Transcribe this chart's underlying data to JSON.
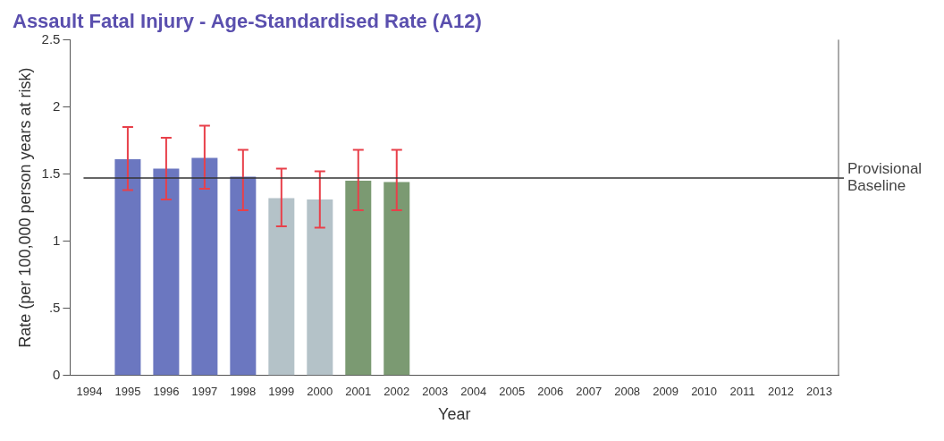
{
  "chart_data": {
    "type": "bar",
    "title": "Assault Fatal Injury - Age-Standardised Rate (A12)",
    "xlabel": "Year",
    "ylabel": "Rate (per 100,000 person years at risk)",
    "categories": [
      "1994",
      "1995",
      "1996",
      "1997",
      "1998",
      "1999",
      "2000",
      "2001",
      "2002",
      "2003",
      "2004",
      "2005",
      "2006",
      "2007",
      "2008",
      "2009",
      "2010",
      "2011",
      "2012",
      "2013"
    ],
    "values": [
      null,
      1.61,
      1.54,
      1.62,
      1.48,
      1.32,
      1.31,
      1.45,
      1.44,
      null,
      null,
      null,
      null,
      null,
      null,
      null,
      null,
      null,
      null,
      null
    ],
    "colors": [
      "#6b77c0",
      "#6b77c0",
      "#6b77c0",
      "#6b77c0",
      "#6b77c0",
      "#b4c2c8",
      "#b4c2c8",
      "#7b9a72",
      "#7b9a72",
      "#7b9a72",
      "#7b9a72",
      "#7b9a72",
      "#7b9a72",
      "#7b9a72",
      "#7b9a72",
      "#7b9a72",
      "#7b9a72",
      "#7b9a72",
      "#7b9a72",
      "#7b9a72"
    ],
    "errors": [
      null,
      [
        1.38,
        1.85
      ],
      [
        1.31,
        1.77
      ],
      [
        1.39,
        1.86
      ],
      [
        1.23,
        1.68
      ],
      [
        1.11,
        1.54
      ],
      [
        1.1,
        1.52
      ],
      [
        1.23,
        1.68
      ],
      [
        1.23,
        1.68
      ],
      null,
      null,
      null,
      null,
      null,
      null,
      null,
      null,
      null,
      null,
      null
    ],
    "ylim": [
      0,
      2.5
    ],
    "yticks": [
      0,
      {
        "value": 0.5,
        "label": ".5"
      },
      1,
      {
        "value": 1.5,
        "label": "1.5"
      },
      2,
      {
        "value": 2.5,
        "label": "2.5"
      }
    ],
    "ref_lines": [
      {
        "axis": "y",
        "value": 1.47,
        "label": "Provisional Baseline",
        "color": "#333333"
      }
    ],
    "grid": false,
    "legend": false
  }
}
